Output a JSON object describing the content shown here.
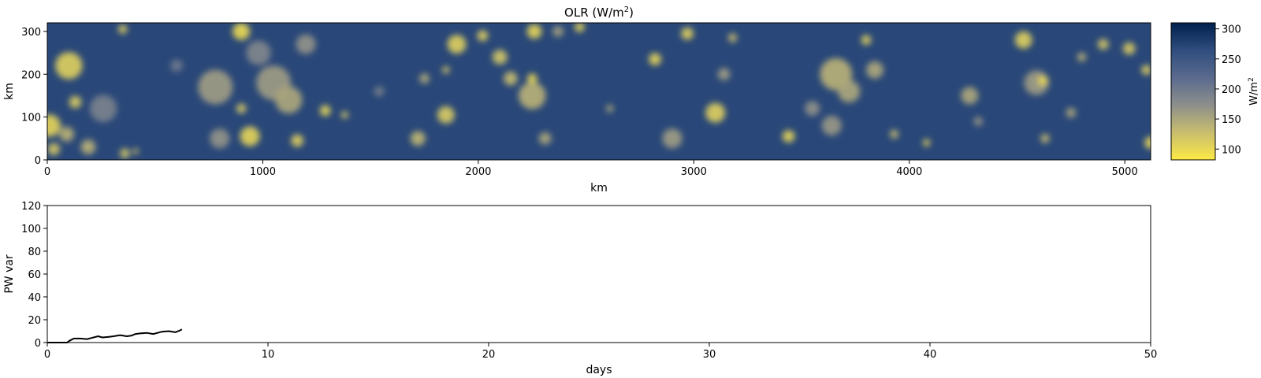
{
  "chart_data": [
    {
      "type": "heatmap",
      "title": "OLR (W/m²)",
      "title_main": "OLR (W/m",
      "title_sup": "2",
      "title_end": ")",
      "xlabel": "km",
      "ylabel": "km",
      "xlim": [
        0,
        5120
      ],
      "ylim": [
        0,
        320
      ],
      "xticks": [
        0,
        1000,
        2000,
        3000,
        4000,
        5000
      ],
      "yticks": [
        0,
        100,
        200,
        300
      ],
      "colorbar": {
        "label": "W/m²",
        "label_main": "W/m",
        "label_sup": "2",
        "range": [
          82,
          310
        ],
        "ticks": [
          100,
          150,
          200,
          250,
          300
        ],
        "colormap": "cividis_r",
        "colors": [
          "#fde945",
          "#c8bd6e",
          "#8d8f8b",
          "#5a6a8e",
          "#2f4d7e",
          "#00204d"
        ]
      },
      "background_value": 270,
      "features": [
        {
          "x": 100,
          "y": 220,
          "r": 55,
          "v": 110
        },
        {
          "x": 10,
          "y": 80,
          "r": 45,
          "v": 105
        },
        {
          "x": 130,
          "y": 135,
          "r": 25,
          "v": 115
        },
        {
          "x": 190,
          "y": 30,
          "r": 30,
          "v": 140
        },
        {
          "x": 30,
          "y": 25,
          "r": 25,
          "v": 120
        },
        {
          "x": 90,
          "y": 60,
          "r": 30,
          "v": 140
        },
        {
          "x": 350,
          "y": 305,
          "r": 18,
          "v": 110
        },
        {
          "x": 260,
          "y": 120,
          "r": 55,
          "v": 190
        },
        {
          "x": 780,
          "y": 170,
          "r": 70,
          "v": 160
        },
        {
          "x": 800,
          "y": 50,
          "r": 40,
          "v": 170
        },
        {
          "x": 900,
          "y": 300,
          "r": 35,
          "v": 100
        },
        {
          "x": 900,
          "y": 120,
          "r": 20,
          "v": 120
        },
        {
          "x": 940,
          "y": 55,
          "r": 40,
          "v": 105
        },
        {
          "x": 1050,
          "y": 180,
          "r": 70,
          "v": 160
        },
        {
          "x": 1120,
          "y": 140,
          "r": 55,
          "v": 150
        },
        {
          "x": 980,
          "y": 250,
          "r": 50,
          "v": 185
        },
        {
          "x": 1160,
          "y": 45,
          "r": 25,
          "v": 110
        },
        {
          "x": 1200,
          "y": 270,
          "r": 40,
          "v": 170
        },
        {
          "x": 1290,
          "y": 115,
          "r": 22,
          "v": 105
        },
        {
          "x": 1380,
          "y": 105,
          "r": 15,
          "v": 120
        },
        {
          "x": 360,
          "y": 15,
          "r": 20,
          "v": 120
        },
        {
          "x": 410,
          "y": 20,
          "r": 12,
          "v": 120
        },
        {
          "x": 1720,
          "y": 50,
          "r": 30,
          "v": 135
        },
        {
          "x": 1750,
          "y": 190,
          "r": 20,
          "v": 145
        },
        {
          "x": 1850,
          "y": 105,
          "r": 35,
          "v": 115
        },
        {
          "x": 1900,
          "y": 270,
          "r": 38,
          "v": 110
        },
        {
          "x": 1850,
          "y": 210,
          "r": 15,
          "v": 120
        },
        {
          "x": 2020,
          "y": 290,
          "r": 22,
          "v": 110
        },
        {
          "x": 2100,
          "y": 240,
          "r": 30,
          "v": 120
        },
        {
          "x": 2150,
          "y": 190,
          "r": 28,
          "v": 130
        },
        {
          "x": 2250,
          "y": 150,
          "r": 55,
          "v": 140
        },
        {
          "x": 2250,
          "y": 190,
          "r": 20,
          "v": 100
        },
        {
          "x": 2260,
          "y": 300,
          "r": 30,
          "v": 105
        },
        {
          "x": 2310,
          "y": 50,
          "r": 25,
          "v": 150
        },
        {
          "x": 2370,
          "y": 300,
          "r": 22,
          "v": 155
        },
        {
          "x": 2470,
          "y": 310,
          "r": 20,
          "v": 105
        },
        {
          "x": 2610,
          "y": 120,
          "r": 15,
          "v": 150
        },
        {
          "x": 2820,
          "y": 235,
          "r": 25,
          "v": 105
        },
        {
          "x": 2900,
          "y": 50,
          "r": 40,
          "v": 160
        },
        {
          "x": 2970,
          "y": 295,
          "r": 25,
          "v": 110
        },
        {
          "x": 3100,
          "y": 110,
          "r": 40,
          "v": 110
        },
        {
          "x": 3140,
          "y": 200,
          "r": 25,
          "v": 160
        },
        {
          "x": 3180,
          "y": 285,
          "r": 18,
          "v": 130
        },
        {
          "x": 3440,
          "y": 55,
          "r": 25,
          "v": 105
        },
        {
          "x": 3660,
          "y": 200,
          "r": 65,
          "v": 140
        },
        {
          "x": 3720,
          "y": 160,
          "r": 45,
          "v": 150
        },
        {
          "x": 3640,
          "y": 80,
          "r": 40,
          "v": 165
        },
        {
          "x": 3800,
          "y": 280,
          "r": 20,
          "v": 110
        },
        {
          "x": 3840,
          "y": 210,
          "r": 35,
          "v": 150
        },
        {
          "x": 3930,
          "y": 60,
          "r": 18,
          "v": 135
        },
        {
          "x": 4080,
          "y": 40,
          "r": 15,
          "v": 110
        },
        {
          "x": 4280,
          "y": 150,
          "r": 35,
          "v": 150
        },
        {
          "x": 4320,
          "y": 90,
          "r": 18,
          "v": 165
        },
        {
          "x": 4530,
          "y": 280,
          "r": 35,
          "v": 110
        },
        {
          "x": 4590,
          "y": 180,
          "r": 50,
          "v": 160
        },
        {
          "x": 4620,
          "y": 185,
          "r": 20,
          "v": 100
        },
        {
          "x": 4630,
          "y": 50,
          "r": 18,
          "v": 130
        },
        {
          "x": 4750,
          "y": 110,
          "r": 20,
          "v": 150
        },
        {
          "x": 4900,
          "y": 270,
          "r": 22,
          "v": 120
        },
        {
          "x": 5020,
          "y": 260,
          "r": 25,
          "v": 115
        },
        {
          "x": 5100,
          "y": 210,
          "r": 20,
          "v": 110
        },
        {
          "x": 5120,
          "y": 40,
          "r": 25,
          "v": 105
        },
        {
          "x": 4800,
          "y": 240,
          "r": 18,
          "v": 140
        },
        {
          "x": 3550,
          "y": 120,
          "r": 30,
          "v": 170
        },
        {
          "x": 1540,
          "y": 160,
          "r": 20,
          "v": 190
        },
        {
          "x": 600,
          "y": 220,
          "r": 25,
          "v": 200
        }
      ]
    },
    {
      "type": "line",
      "xlabel": "days",
      "ylabel": "PW var",
      "xlim": [
        0,
        50
      ],
      "ylim": [
        0,
        120
      ],
      "xticks": [
        0,
        10,
        20,
        30,
        40,
        50
      ],
      "yticks": [
        0,
        20,
        40,
        60,
        80,
        100,
        120
      ],
      "series": [
        {
          "color": "#000000",
          "x": [
            0,
            0.5,
            0.9,
            1.0,
            1.2,
            1.5,
            1.8,
            2.0,
            2.3,
            2.5,
            2.8,
            3.0,
            3.3,
            3.6,
            3.8,
            4.0,
            4.2,
            4.5,
            4.8,
            5.0,
            5.2,
            5.5,
            5.8,
            6.0,
            6.1
          ],
          "y": [
            0,
            0,
            0,
            1.5,
            3.5,
            3.5,
            3.0,
            4.0,
            5.5,
            4.5,
            5.0,
            5.5,
            6.5,
            5.5,
            6.0,
            7.5,
            8.0,
            8.5,
            7.5,
            8.5,
            9.5,
            10.0,
            9.0,
            10.5,
            11.5
          ]
        }
      ]
    }
  ]
}
